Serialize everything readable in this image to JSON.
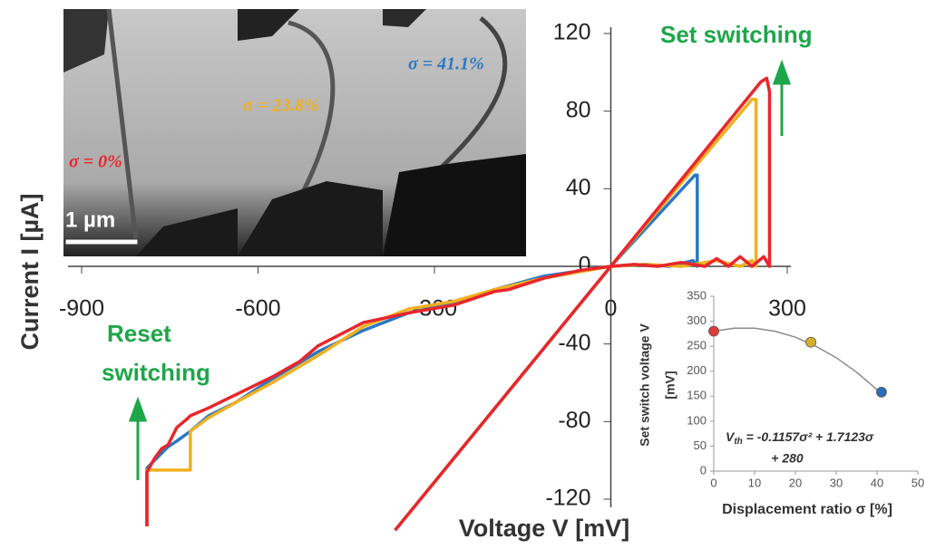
{
  "chart_data": [
    {
      "type": "line",
      "xlabel": "Voltage V [mV]",
      "ylabel": "Current I [µA]",
      "xlim": [
        -900,
        300
      ],
      "xticks": [
        -900,
        -600,
        -300,
        0,
        300
      ],
      "ylim": [
        -120,
        120
      ],
      "yticks": [
        -120,
        -80,
        -40,
        0,
        40,
        80,
        120
      ],
      "annotations": [
        "Set switching",
        "Reset",
        "switching"
      ],
      "scale_bar": "1 µm",
      "series": [
        {
          "name": "σ = 41.1%",
          "color": "#2a78c4",
          "x": [
            -789,
            -789,
            -776,
            -753,
            -738,
            -715,
            -684,
            -637,
            -576,
            -498,
            -421,
            -344,
            -267,
            -198,
            -113,
            0,
            60,
            100,
            140,
            147,
            147,
            143,
            0,
            -367
          ],
          "values": [
            -134,
            -104,
            -100,
            -93,
            -90,
            -85,
            -77,
            -70,
            -58,
            -44,
            -33,
            -24,
            -19,
            -12,
            -5,
            0,
            1,
            0,
            3,
            0,
            47,
            47,
            0,
            -136
          ]
        },
        {
          "name": "σ = 23.8%",
          "color": "#f0b020",
          "x": [
            -789,
            -789,
            -715,
            -715,
            -684,
            -637,
            -576,
            -498,
            -421,
            -344,
            -267,
            -198,
            -113,
            0,
            60,
            120,
            180,
            220,
            240,
            247,
            247,
            240,
            0,
            -367
          ],
          "values": [
            -134,
            -105,
            -105,
            -85,
            -78,
            -70,
            -60,
            -46,
            -31,
            -22,
            -18,
            -12,
            -6,
            0,
            1,
            0,
            3,
            0,
            3,
            0,
            86,
            86,
            0,
            -136
          ]
        },
        {
          "name": "σ = 0%",
          "color": "#e8262c",
          "x": [
            -789,
            -789,
            -776,
            -764,
            -753,
            -738,
            -722,
            -715,
            -684,
            -637,
            -576,
            -529,
            -498,
            -421,
            -344,
            -267,
            -198,
            -174,
            -113,
            -51,
            0,
            40,
            80,
            120,
            160,
            180,
            200,
            220,
            240,
            260,
            270,
            270,
            265,
            255,
            0,
            -367
          ],
          "values": [
            -134,
            -106,
            -99,
            -94,
            -92,
            -83,
            -79,
            -77,
            -73,
            -66,
            -57,
            -49,
            -41,
            -29,
            -24,
            -20,
            -13,
            -12,
            -6,
            -2,
            0,
            1,
            0,
            2,
            0,
            4,
            0,
            5,
            0,
            5,
            0,
            90,
            97,
            95,
            0,
            -136
          ]
        }
      ]
    },
    {
      "type": "scatter",
      "xlabel": "Displacement ratio σ [%]",
      "ylabel": [
        "Set switch voltage V",
        "[mV]"
      ],
      "xlim": [
        0,
        50
      ],
      "xticks": [
        0,
        10,
        20,
        30,
        40,
        50
      ],
      "ylim": [
        0,
        350
      ],
      "yticks": [
        0,
        50,
        100,
        150,
        200,
        250,
        300,
        350
      ],
      "x": [
        0,
        23.8,
        41.1
      ],
      "values": [
        280,
        258,
        158
      ],
      "colors": [
        "#e03a36",
        "#d6b02a",
        "#2a6fb8"
      ],
      "fit": {
        "color": "#8a8a8a",
        "x": [
          0,
          5,
          10,
          15,
          20,
          25,
          30,
          35,
          41
        ],
        "values": [
          280,
          286,
          286,
          280,
          268,
          250,
          227,
          198,
          156
        ]
      },
      "equation": [
        "V",
        "th",
        " = -0.1157σ² + 1.7123σ",
        "+ 280"
      ]
    }
  ]
}
